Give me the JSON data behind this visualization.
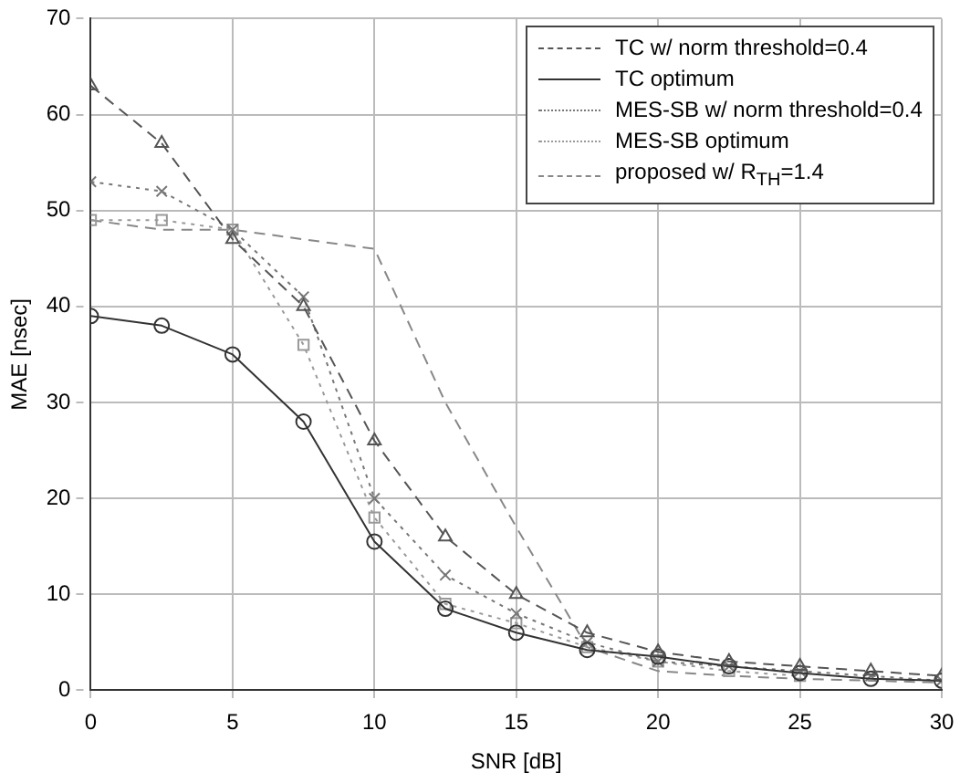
{
  "chart_data": {
    "type": "line",
    "xlabel": "SNR [dB]",
    "ylabel": "MAE [nsec]",
    "x": [
      0,
      2.5,
      5,
      7.5,
      10,
      12.5,
      15,
      17.5,
      20,
      22.5,
      25,
      27.5,
      30
    ],
    "series": [
      {
        "name": "TC w/ norm threshold=0.4",
        "color": "#555555",
        "line_style": "dashed",
        "marker": "triangle",
        "values": [
          63,
          57,
          47,
          40,
          26,
          16,
          10,
          6,
          4,
          3,
          2.5,
          2,
          1.5
        ]
      },
      {
        "name": "TC optimum",
        "color": "#333333",
        "line_style": "solid",
        "marker": "circle",
        "values": [
          39,
          38,
          35,
          28,
          15.5,
          8.5,
          6,
          4.2,
          3.5,
          2.5,
          1.8,
          1.2,
          1
        ]
      },
      {
        "name": "MES-SB w/ norm threshold=0.4",
        "color": "#777777",
        "line_style": "dotted",
        "marker": "cross",
        "values": [
          53,
          52,
          48,
          41,
          20,
          12,
          8,
          5,
          3,
          2.5,
          2,
          1.5,
          1
        ]
      },
      {
        "name": "MES-SB optimum",
        "color": "#999999",
        "line_style": "dotted",
        "marker": "square",
        "values": [
          49,
          49,
          48,
          36,
          18,
          9,
          7,
          4.5,
          3,
          2,
          1.5,
          null,
          null
        ]
      },
      {
        "name": "proposed w/ R$_{TH}$=1.4",
        "color": "#888888",
        "line_style": "dashed",
        "marker": "none",
        "values": [
          49,
          48,
          48,
          47,
          46,
          30,
          17,
          4.5,
          2,
          1.5,
          1.2,
          1,
          0.8
        ]
      }
    ],
    "xlim": [
      0,
      30
    ],
    "xticks": [
      0,
      5,
      10,
      15,
      20,
      25,
      30
    ],
    "ylim": [
      0,
      70
    ],
    "yticks": [
      0,
      10,
      20,
      30,
      40,
      50,
      60,
      70
    ],
    "grid": true,
    "legend": "top right"
  }
}
